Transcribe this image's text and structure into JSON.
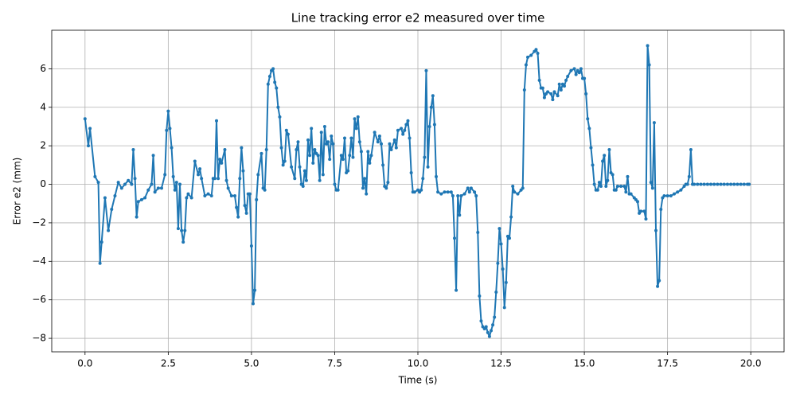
{
  "chart_data": {
    "type": "line",
    "title": "Line tracking error e2 measured over time",
    "x_label": "Time (s)",
    "y_label": "Error e2 (mm)",
    "color": "#1f77b4",
    "grid": true,
    "markers": true,
    "xlim": [
      -1.0,
      21.0
    ],
    "ylim": [
      -8.7,
      8.0
    ],
    "xticks": [
      {
        "value": 0,
        "label": "0.0"
      },
      2.5,
      {
        "value": 5,
        "label": "5.0"
      },
      7.5,
      {
        "value": 10,
        "label": "10.0"
      },
      12.5,
      {
        "value": 15,
        "label": "15.0"
      },
      17.5,
      {
        "value": 20,
        "label": "20.0"
      }
    ],
    "yticks": [
      {
        "value": -8,
        "label": "−8"
      },
      {
        "value": -6,
        "label": "−6"
      },
      {
        "value": -4,
        "label": "−4"
      },
      {
        "value": -2,
        "label": "−2"
      },
      0,
      2,
      4,
      6
    ],
    "x": [
      0,
      0.1,
      0.15,
      0.3,
      0.4,
      0.45,
      0.5,
      0.6,
      0.7,
      0.8,
      0.9,
      1.0,
      1.1,
      1.2,
      1.3,
      1.4,
      1.45,
      1.5,
      1.55,
      1.6,
      1.7,
      1.8,
      1.9,
      2.0,
      2.05,
      2.1,
      2.2,
      2.3,
      2.4,
      2.45,
      2.5,
      2.55,
      2.6,
      2.65,
      2.7,
      2.75,
      2.8,
      2.85,
      2.9,
      2.95,
      3.0,
      3.05,
      3.1,
      3.2,
      3.3,
      3.4,
      3.45,
      3.5,
      3.6,
      3.7,
      3.8,
      3.85,
      3.9,
      3.95,
      4.0,
      4.05,
      4.1,
      4.2,
      4.25,
      4.3,
      4.4,
      4.5,
      4.55,
      4.6,
      4.65,
      4.7,
      4.75,
      4.8,
      4.85,
      4.9,
      4.95,
      5.0,
      5.05,
      5.1,
      5.15,
      5.2,
      5.3,
      5.35,
      5.4,
      5.45,
      5.5,
      5.55,
      5.6,
      5.65,
      5.7,
      5.75,
      5.8,
      5.85,
      5.9,
      5.95,
      6.0,
      6.05,
      6.1,
      6.2,
      6.3,
      6.35,
      6.4,
      6.45,
      6.5,
      6.55,
      6.6,
      6.65,
      6.7,
      6.75,
      6.8,
      6.85,
      6.9,
      6.95,
      7.0,
      7.05,
      7.1,
      7.15,
      7.2,
      7.25,
      7.3,
      7.35,
      7.4,
      7.45,
      7.5,
      7.55,
      7.6,
      7.7,
      7.75,
      7.8,
      7.85,
      7.9,
      7.95,
      8.0,
      8.05,
      8.1,
      8.15,
      8.2,
      8.25,
      8.3,
      8.35,
      8.4,
      8.45,
      8.5,
      8.55,
      8.6,
      8.7,
      8.8,
      8.85,
      8.9,
      8.95,
      9.0,
      9.05,
      9.1,
      9.15,
      9.2,
      9.3,
      9.35,
      9.4,
      9.5,
      9.55,
      9.6,
      9.65,
      9.7,
      9.75,
      9.8,
      9.85,
      9.9,
      10.0,
      10.05,
      10.1,
      10.15,
      10.2,
      10.25,
      10.3,
      10.35,
      10.4,
      10.45,
      10.5,
      10.55,
      10.6,
      10.7,
      10.8,
      10.9,
      11.0,
      11.05,
      11.1,
      11.15,
      11.2,
      11.25,
      11.3,
      11.4,
      11.5,
      11.55,
      11.6,
      11.7,
      11.75,
      11.8,
      11.85,
      11.9,
      11.95,
      12.0,
      12.05,
      12.1,
      12.15,
      12.2,
      12.25,
      12.3,
      12.35,
      12.4,
      12.45,
      12.5,
      12.55,
      12.6,
      12.65,
      12.7,
      12.75,
      12.8,
      12.85,
      12.9,
      13.0,
      13.1,
      13.15,
      13.2,
      13.25,
      13.3,
      13.4,
      13.5,
      13.55,
      13.6,
      13.65,
      13.7,
      13.75,
      13.8,
      13.85,
      13.9,
      14.0,
      14.05,
      14.1,
      14.2,
      14.25,
      14.3,
      14.35,
      14.4,
      14.45,
      14.5,
      14.6,
      14.7,
      14.75,
      14.8,
      14.85,
      14.9,
      14.95,
      15.0,
      15.05,
      15.1,
      15.15,
      15.2,
      15.25,
      15.3,
      15.35,
      15.4,
      15.45,
      15.5,
      15.55,
      15.6,
      15.65,
      15.7,
      15.75,
      15.8,
      15.85,
      15.9,
      15.95,
      16.0,
      16.1,
      16.2,
      16.25,
      16.3,
      16.35,
      16.4,
      16.5,
      16.55,
      16.6,
      16.65,
      16.7,
      16.8,
      16.85,
      16.9,
      16.95,
      17.0,
      17.05,
      17.1,
      17.15,
      17.2,
      17.25,
      17.3,
      17.35,
      17.4,
      17.5,
      17.6,
      17.7,
      17.8,
      17.9,
      18.0,
      18.05,
      18.1,
      18.15,
      18.2,
      18.25,
      18.3,
      18.4,
      18.5,
      18.6,
      18.7,
      18.8,
      18.9,
      19.0,
      19.1,
      19.2,
      19.3,
      19.4,
      19.5,
      19.6,
      19.7,
      19.8,
      19.9,
      19.95
    ],
    "values": [
      3.4,
      2.0,
      2.9,
      0.4,
      0.1,
      -4.1,
      -3.0,
      -0.7,
      -2.4,
      -1.3,
      -0.6,
      0.1,
      -0.2,
      0.0,
      0.2,
      0.0,
      1.8,
      0.3,
      -1.7,
      -0.9,
      -0.8,
      -0.7,
      -0.3,
      0.0,
      1.5,
      -0.4,
      -0.2,
      -0.2,
      0.5,
      2.8,
      3.8,
      2.9,
      1.9,
      0.4,
      -0.3,
      0.1,
      -2.3,
      0.0,
      -2.4,
      -3.0,
      -2.4,
      -0.7,
      -0.5,
      -0.7,
      1.2,
      0.5,
      0.8,
      0.3,
      -0.6,
      -0.5,
      -0.6,
      0.3,
      0.3,
      3.3,
      0.3,
      1.3,
      1.1,
      1.8,
      0.2,
      -0.2,
      -0.6,
      -0.6,
      -1.2,
      -1.7,
      0.3,
      1.9,
      0.7,
      -1.1,
      -1.5,
      -0.5,
      -0.5,
      -3.2,
      -6.2,
      -5.5,
      -0.8,
      0.5,
      1.6,
      -0.2,
      -0.3,
      1.8,
      5.2,
      5.6,
      5.9,
      6.0,
      5.3,
      5.0,
      4.0,
      3.5,
      1.9,
      1.0,
      1.2,
      2.8,
      2.6,
      0.9,
      0.3,
      1.8,
      2.2,
      0.9,
      0.0,
      -0.1,
      0.7,
      0.2,
      2.3,
      1.5,
      2.9,
      1.1,
      1.8,
      1.6,
      1.5,
      0.2,
      2.7,
      0.5,
      3.0,
      2.1,
      2.2,
      1.3,
      2.5,
      2.1,
      0.0,
      -0.3,
      -0.3,
      1.5,
      1.3,
      2.4,
      0.6,
      0.7,
      1.5,
      2.4,
      1.4,
      3.4,
      2.9,
      3.5,
      2.2,
      1.7,
      -0.2,
      0.3,
      -0.5,
      1.7,
      1.1,
      1.5,
      2.7,
      2.2,
      2.5,
      2.1,
      1.0,
      -0.1,
      -0.2,
      0.1,
      2.1,
      1.8,
      2.3,
      1.9,
      2.8,
      2.9,
      2.6,
      2.8,
      3.1,
      3.3,
      2.4,
      0.6,
      -0.4,
      -0.4,
      -0.3,
      -0.4,
      -0.3,
      0.3,
      1.4,
      5.9,
      0.9,
      3.0,
      4.0,
      4.6,
      3.1,
      0.4,
      -0.4,
      -0.5,
      -0.4,
      -0.4,
      -0.4,
      -0.6,
      -2.8,
      -5.5,
      -0.6,
      -1.6,
      -0.6,
      -0.5,
      -0.2,
      -0.4,
      -0.2,
      -0.4,
      -0.6,
      -2.5,
      -5.8,
      -7.1,
      -7.4,
      -7.5,
      -7.4,
      -7.7,
      -7.9,
      -7.6,
      -7.3,
      -6.9,
      -5.6,
      -4.1,
      -2.3,
      -3.1,
      -4.4,
      -6.4,
      -5.1,
      -2.7,
      -2.8,
      -1.7,
      -0.1,
      -0.4,
      -0.5,
      -0.3,
      -0.2,
      4.9,
      6.2,
      6.6,
      6.7,
      6.9,
      7.0,
      6.8,
      5.4,
      5.0,
      5.0,
      4.5,
      4.7,
      4.8,
      4.7,
      4.4,
      4.8,
      4.6,
      5.2,
      4.9,
      5.2,
      5.1,
      5.4,
      5.6,
      5.9,
      6.0,
      5.7,
      5.9,
      5.8,
      6.0,
      5.5,
      5.5,
      4.7,
      3.4,
      2.9,
      1.9,
      1.0,
      0.0,
      -0.3,
      -0.3,
      0.1,
      -0.1,
      1.2,
      1.5,
      -0.1,
      0.2,
      1.8,
      0.6,
      0.5,
      -0.3,
      -0.3,
      -0.1,
      -0.1,
      -0.1,
      -0.4,
      0.4,
      -0.5,
      -0.5,
      -0.7,
      -0.8,
      -0.9,
      -1.5,
      -1.4,
      -1.4,
      -1.8,
      7.2,
      6.2,
      0.1,
      -0.2,
      3.2,
      -2.4,
      -5.3,
      -5.0,
      -1.3,
      -0.7,
      -0.6,
      -0.6,
      -0.6,
      -0.5,
      -0.4,
      -0.3,
      -0.1,
      0.0,
      0.0,
      0.4,
      1.8,
      0.0,
      0,
      0,
      0,
      0,
      0,
      0,
      0,
      0,
      0,
      0,
      0,
      0,
      0,
      0,
      0,
      0,
      0,
      0
    ]
  }
}
